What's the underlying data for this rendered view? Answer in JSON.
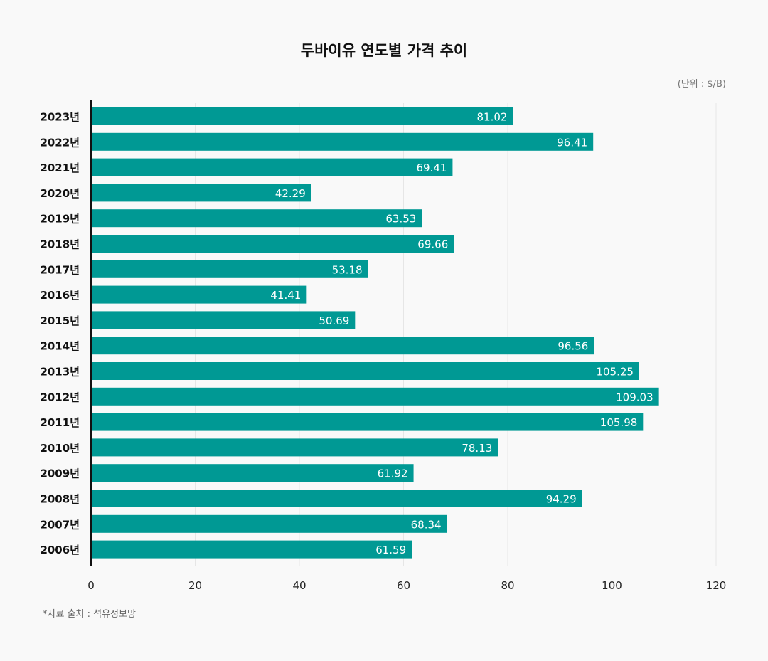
{
  "chart_data": {
    "type": "bar",
    "orientation": "horizontal",
    "title": "두바이유 연도별 가격 추이",
    "unit_label": "(단위 : $/B)",
    "source_note": "*자료 출처 : 석유정보망",
    "categories": [
      "2023년",
      "2022년",
      "2021년",
      "2020년",
      "2019년",
      "2018년",
      "2017년",
      "2016년",
      "2015년",
      "2014년",
      "2013년",
      "2012년",
      "2011년",
      "2010년",
      "2009년",
      "2008년",
      "2007년",
      "2006년"
    ],
    "values": [
      81.02,
      96.41,
      69.41,
      42.29,
      63.53,
      69.66,
      53.18,
      41.41,
      50.69,
      96.56,
      105.25,
      109.03,
      105.98,
      78.13,
      61.92,
      94.29,
      68.34,
      61.59
    ],
    "value_labels": [
      "81.02",
      "96.41",
      "69.41",
      "42.29",
      "63.53",
      "69.66",
      "53.18",
      "41.41",
      "50.69",
      "96.56",
      "105.25",
      "109.03",
      "105.98",
      "78.13",
      "61.92",
      "94.29",
      "68.34",
      "61.59"
    ],
    "xlim": [
      0,
      120
    ],
    "xticks": [
      0,
      20,
      40,
      60,
      80,
      100,
      120
    ],
    "xtick_labels": [
      "0",
      "20",
      "40",
      "60",
      "80",
      "100",
      "120"
    ],
    "grid": true,
    "bar_color": "#009994",
    "label_color": "#ffffff"
  }
}
